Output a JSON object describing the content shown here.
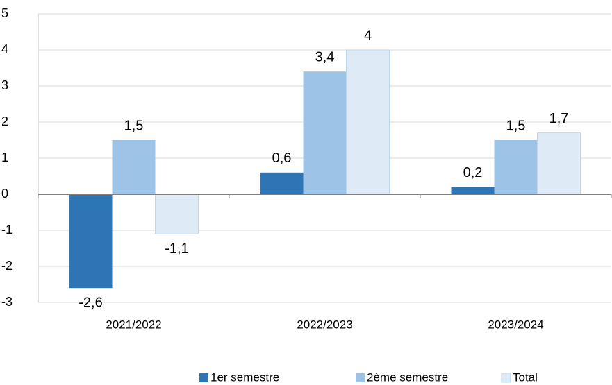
{
  "chart_data": {
    "type": "bar",
    "categories": [
      "2021/2022",
      "2022/2023",
      "2023/2024"
    ],
    "series": [
      {
        "name": "1er semestre",
        "color": "#2e75b6",
        "values": [
          -2.6,
          0.6,
          0.2
        ],
        "value_labels": [
          "-2,6",
          "0,6",
          "0,2"
        ]
      },
      {
        "name": "2ème semestre",
        "color": "#9dc3e6",
        "values": [
          1.5,
          3.4,
          1.5
        ],
        "value_labels": [
          "1,5",
          "3,4",
          "1,5"
        ]
      },
      {
        "name": "Total",
        "color": "#deebf7",
        "values": [
          -1.1,
          4,
          1.7
        ],
        "value_labels": [
          "-1,1",
          "4",
          "1,7"
        ]
      }
    ],
    "ylim": [
      -3,
      5
    ],
    "yticks": [
      -3,
      -2,
      -1,
      0,
      1,
      2,
      3,
      4,
      5
    ],
    "grid": true,
    "legend": "bottom"
  }
}
